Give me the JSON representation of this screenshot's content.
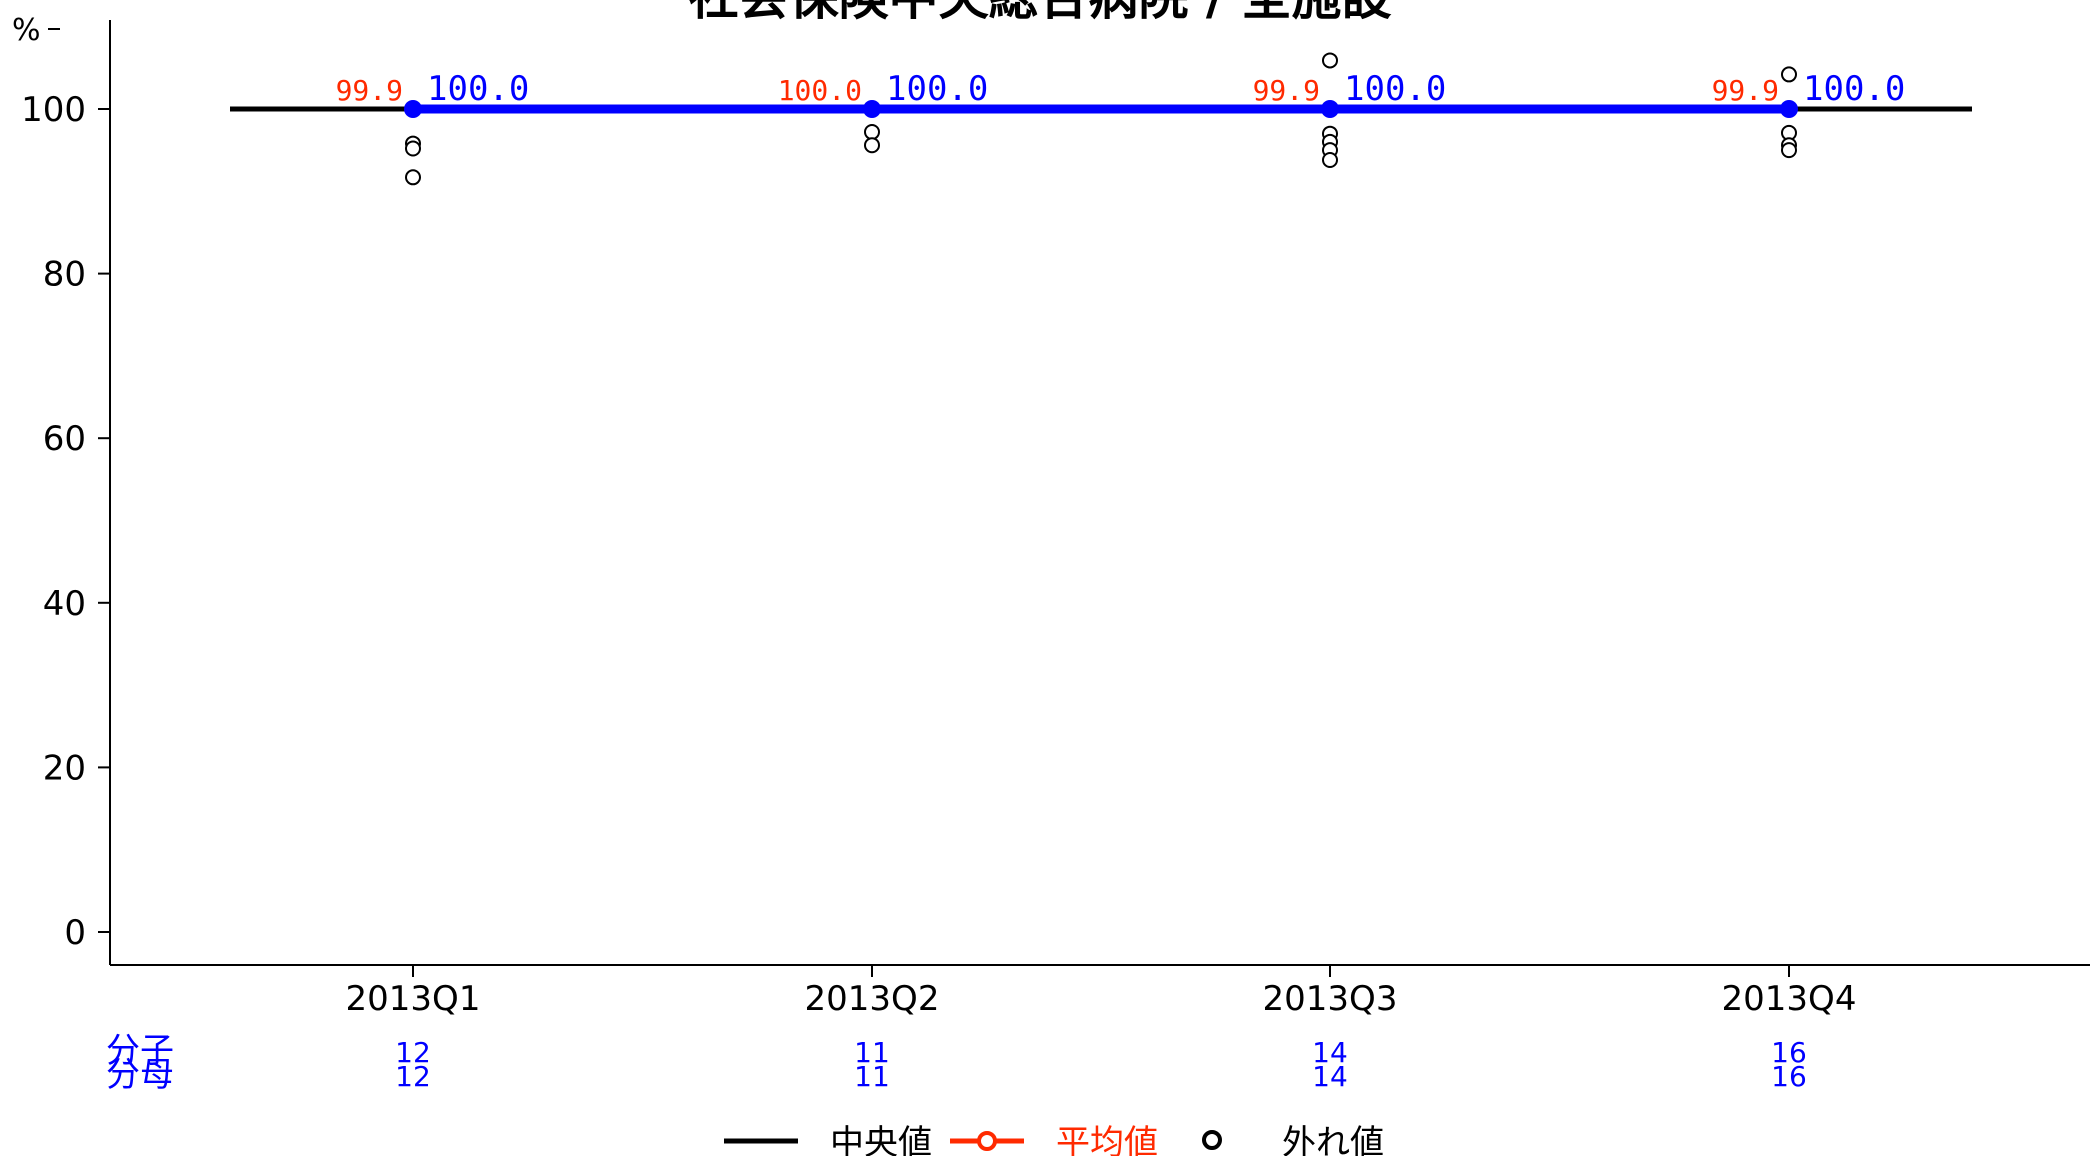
{
  "chart_data": {
    "type": "line",
    "title": "社会保険中央総合病院 / 全施設",
    "unit": "%",
    "categories": [
      "2013Q1",
      "2013Q2",
      "2013Q3",
      "2013Q4"
    ],
    "ylim": [
      0,
      108
    ],
    "yticks": [
      0,
      20,
      40,
      60,
      80,
      100
    ],
    "series": [
      {
        "name": "中央値",
        "color": "#000000",
        "values": [
          100,
          100,
          100,
          100
        ]
      },
      {
        "name": "平均値",
        "color": "#ff2a00",
        "values": [
          99.9,
          100.0,
          99.9,
          99.9
        ],
        "labels": [
          "99.9",
          "100.0",
          "99.9",
          "99.9"
        ]
      },
      {
        "color": "#0000ff",
        "values": [
          100.0,
          100.0,
          100.0,
          100.0
        ],
        "labels": [
          "100.0",
          "100.0",
          "100.0",
          "100.0"
        ]
      }
    ],
    "outliers": [
      [
        95.8,
        95.2,
        91.7
      ],
      [
        97.2,
        95.6
      ],
      [
        105.9,
        97.0,
        96.0,
        95.0,
        93.8
      ],
      [
        104.2,
        97.1,
        95.6,
        95.0
      ]
    ],
    "numerator_label": "分子",
    "denominator_label": "分母",
    "numerators": [
      "12",
      "11",
      "14",
      "16"
    ],
    "denominators": [
      "12",
      "11",
      "14",
      "16"
    ],
    "legend": [
      {
        "label": "中央値",
        "symbol": "line",
        "color": "#000000"
      },
      {
        "label": "平均値",
        "symbol": "line-point",
        "color": "#ff2a00"
      },
      {
        "label": "外れ値",
        "symbol": "open-circle",
        "color": "#000000"
      }
    ],
    "grid": false
  }
}
